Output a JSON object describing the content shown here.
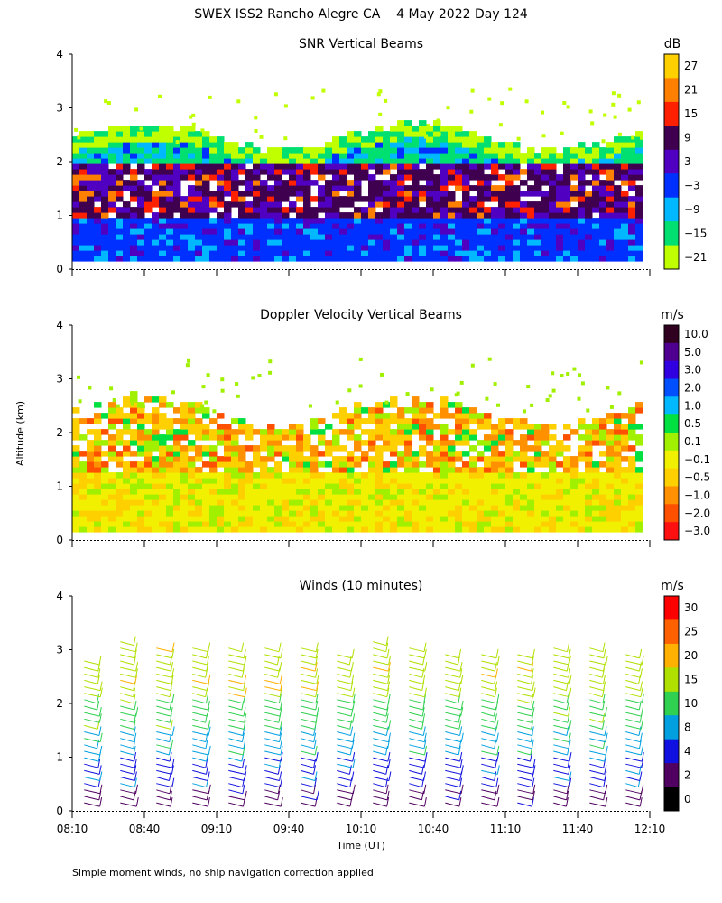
{
  "header": {
    "title": "SWEX ISS2 Rancho Alegre CA    4 May 2022 Day 124"
  },
  "footer": {
    "note": "Simple moment winds, no ship navigation correction applied"
  },
  "axes": {
    "ylabel": "Altitude (km)",
    "xlabel": "Time (UT)",
    "x_tick_labels": [
      "08:10",
      "08:40",
      "09:10",
      "09:40",
      "10:10",
      "10:40",
      "11:10",
      "11:40",
      "12:10"
    ],
    "y_tick_labels": [
      "0",
      "1",
      "2",
      "3",
      "4"
    ]
  },
  "chart_data": [
    {
      "type": "heatmap",
      "title": "SNR Vertical Beams",
      "units": "dB",
      "xlim": [
        0,
        240
      ],
      "ylim": [
        0,
        4
      ],
      "x_unit": "minutes after 08:10 UT",
      "colorbar": {
        "labels": [
          "27",
          "21",
          "15",
          "9",
          "3",
          "−3",
          "−9",
          "−15",
          "−21"
        ],
        "colors": [
          "#ffd000",
          "#ff8000",
          "#ff2000",
          "#400050",
          "#5000c0",
          "#0030ff",
          "#00b8ff",
          "#00e070",
          "#c0ff00"
        ]
      },
      "layers": [
        {
          "from_km": 0.15,
          "to_km": 0.9,
          "dominant": "−3"
        },
        {
          "from_km": 0.9,
          "to_km": 1.9,
          "dominant": "9"
        },
        {
          "from_km": 1.9,
          "to_km": 2.3,
          "dominant": "−15"
        },
        {
          "from_km": 2.3,
          "to_km": 2.8,
          "dominant": "−21"
        }
      ]
    },
    {
      "type": "heatmap",
      "title": "Doppler Velocity Vertical Beams",
      "units": "m/s",
      "xlim": [
        0,
        240
      ],
      "ylim": [
        0,
        4
      ],
      "colorbar": {
        "labels": [
          "10.0",
          "5.0",
          "3.0",
          "2.0",
          "1.0",
          "0.5",
          "0.1",
          "−0.1",
          "−0.5",
          "−1.0",
          "−2.0",
          "−3.0"
        ],
        "colors": [
          "#300020",
          "#500090",
          "#3000e0",
          "#0050ff",
          "#00b8ff",
          "#00e040",
          "#a0f000",
          "#f0f000",
          "#ffd000",
          "#ff9000",
          "#ff5000",
          "#ff1010"
        ]
      },
      "layers": [
        {
          "from_km": 0.15,
          "to_km": 1.2,
          "dominant": "−0.1"
        },
        {
          "from_km": 1.2,
          "to_km": 2.5,
          "dominant": "−0.5"
        }
      ]
    },
    {
      "type": "scatter",
      "title": "Winds (10 minutes)",
      "units": "m/s",
      "xlim": [
        0,
        240
      ],
      "ylim": [
        0,
        4
      ],
      "colorbar": {
        "labels": [
          "30",
          "25",
          "20",
          "15",
          "10",
          "8",
          "4",
          "2",
          "0"
        ],
        "colors": [
          "#ff0000",
          "#ff6000",
          "#ffb000",
          "#b0e000",
          "#30d050",
          "#00a0e0",
          "#1010e0",
          "#500060",
          "#000000"
        ]
      },
      "profile_times_min": [
        5,
        20,
        35,
        50,
        65,
        80,
        95,
        110,
        125,
        140,
        155,
        170,
        185,
        200,
        215,
        230
      ]
    }
  ]
}
